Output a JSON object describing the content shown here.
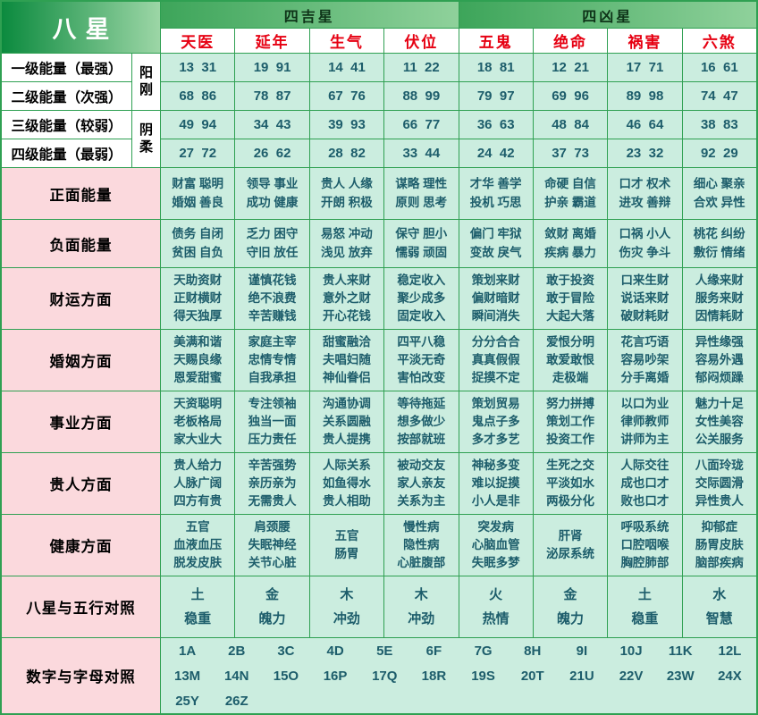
{
  "chart_data": {
    "type": "table",
    "title": "八星",
    "header": {
      "corner": "八星",
      "lucky_group": "四吉星",
      "unlucky_group": "四凶星",
      "stars": [
        "天医",
        "延年",
        "生气",
        "伏位",
        "五鬼",
        "绝命",
        "祸害",
        "六煞"
      ]
    },
    "side": {
      "yang": "阳刚",
      "yin": "阴柔"
    },
    "energy_rows": [
      {
        "label": "一级能量（最强）",
        "values": [
          "13  31",
          "19  91",
          "14  41",
          "11  22",
          "18  81",
          "12  21",
          "17  71",
          "16  61"
        ]
      },
      {
        "label": "二级能量（次强）",
        "values": [
          "68  86",
          "78  87",
          "67  76",
          "88  99",
          "79  97",
          "69  96",
          "89  98",
          "74  47"
        ]
      },
      {
        "label": "三级能量（较弱）",
        "values": [
          "49  94",
          "34  43",
          "39  93",
          "66  77",
          "36  63",
          "48  84",
          "46  64",
          "38  83"
        ]
      },
      {
        "label": "四级能量（最弱）",
        "values": [
          "27  72",
          "26  62",
          "28  82",
          "33  44",
          "24  42",
          "37  73",
          "23  32",
          "92  29"
        ]
      }
    ],
    "sections": [
      {
        "label": "正面能量",
        "cells": [
          "财富 聪明\n婚姻 善良",
          "领导 事业\n成功 健康",
          "贵人 人缘\n开朗 积极",
          "谋略 理性\n原则 思考",
          "才华 善学\n投机 巧思",
          "命硬 自信\n护亲 霸道",
          "口才 权术\n进攻 善辩",
          "细心 聚亲\n合欢 异性"
        ]
      },
      {
        "label": "负面能量",
        "cells": [
          "债务 自闭\n贫困 自负",
          "乏力 困守\n守旧 放任",
          "易怒 冲动\n浅见 放弃",
          "保守 胆小\n懦弱 顽固",
          "偏门 牢狱\n变故 戾气",
          "敛财 离婚\n疾病 暴力",
          "口祸 小人\n伤灾 争斗",
          "桃花 纠纷\n敷衍 情绪"
        ]
      },
      {
        "label": "财运方面",
        "cells": [
          "天助资财\n正财横财\n得天独厚",
          "谨慎花钱\n绝不浪费\n辛苦赚钱",
          "贵人来财\n意外之财\n开心花钱",
          "稳定收入\n聚少成多\n固定收入",
          "策划来财\n偏财暗财\n瞬间消失",
          "敢于投资\n敢于冒险\n大起大落",
          "口来生财\n说话来财\n破财耗财",
          "人缘来财\n服务来财\n因情耗财"
        ]
      },
      {
        "label": "婚姻方面",
        "cells": [
          "美满和谐\n天赐良缘\n恩爱甜蜜",
          "家庭主宰\n忠情专情\n自我承担",
          "甜蜜融洽\n夫唱妇随\n神仙眷侣",
          "四平八稳\n平淡无奇\n害怕改变",
          "分分合合\n真真假假\n捉摸不定",
          "爱恨分明\n敢爱敢恨\n走极端",
          "花言巧语\n容易吵架\n分手离婚",
          "异性缘强\n容易外遇\n郁闷烦躁"
        ]
      },
      {
        "label": "事业方面",
        "cells": [
          "天资聪明\n老板格局\n家大业大",
          "专注领袖\n独当一面\n压力责任",
          "沟通协调\n关系圆融\n贵人提携",
          "等待拖延\n想多做少\n按部就班",
          "策划贸易\n鬼点子多\n多才多艺",
          "努力拼搏\n策划工作\n投资工作",
          "以口为业\n律师教师\n讲师为主",
          "魅力十足\n女性美容\n公关服务"
        ]
      },
      {
        "label": "贵人方面",
        "cells": [
          "贵人给力\n人脉广阔\n四方有贵",
          "辛苦强势\n亲历亲为\n无需贵人",
          "人际关系\n如鱼得水\n贵人相助",
          "被动交友\n家人亲友\n关系为主",
          "神秘多变\n难以捉摸\n小人是非",
          "生死之交\n平淡如水\n两极分化",
          "人际交往\n成也口才\n败也口才",
          "八面玲珑\n交际圆滑\n异性贵人"
        ]
      },
      {
        "label": "健康方面",
        "cells": [
          "五官\n血液血压\n脱发皮肤",
          "肩颈腰\n失眠神经\n关节心脏",
          "五官\n肠胃",
          "慢性病\n隐性病\n心脏腹部",
          "突发病\n心脑血管\n失眠多梦",
          "肝肾\n泌尿系统",
          "呼吸系统\n口腔咽喉\n胸腔肺部",
          "抑郁症\n肠胃皮肤\n脑部疾病"
        ]
      }
    ],
    "elements": {
      "label": "八星与五行对照",
      "cells": [
        "土\n稳重",
        "金\n魄力",
        "木\n冲劲",
        "木\n冲劲",
        "火\n热情",
        "金\n魄力",
        "土\n稳重",
        "水\n智慧"
      ]
    },
    "alphabet": {
      "label": "数字与字母对照",
      "items": [
        "1A",
        "2B",
        "3C",
        "4D",
        "5E",
        "6F",
        "7G",
        "8H",
        "9I",
        "10J",
        "11K",
        "12L",
        "13M",
        "14N",
        "15O",
        "16P",
        "17Q",
        "18R",
        "19S",
        "20T",
        "21U",
        "22V",
        "23W",
        "24X",
        "25Y",
        "26Z"
      ]
    }
  },
  "colors": {
    "grid_green": "#2fa052",
    "title_gradient_dark": "#0b8a3e",
    "title_gradient_light": "#9cd6a6",
    "star_red": "#e60012",
    "label_pink": "#fbd9dd",
    "cell_mint": "#cbeddf",
    "cell_ink": "#1d5d6b"
  }
}
